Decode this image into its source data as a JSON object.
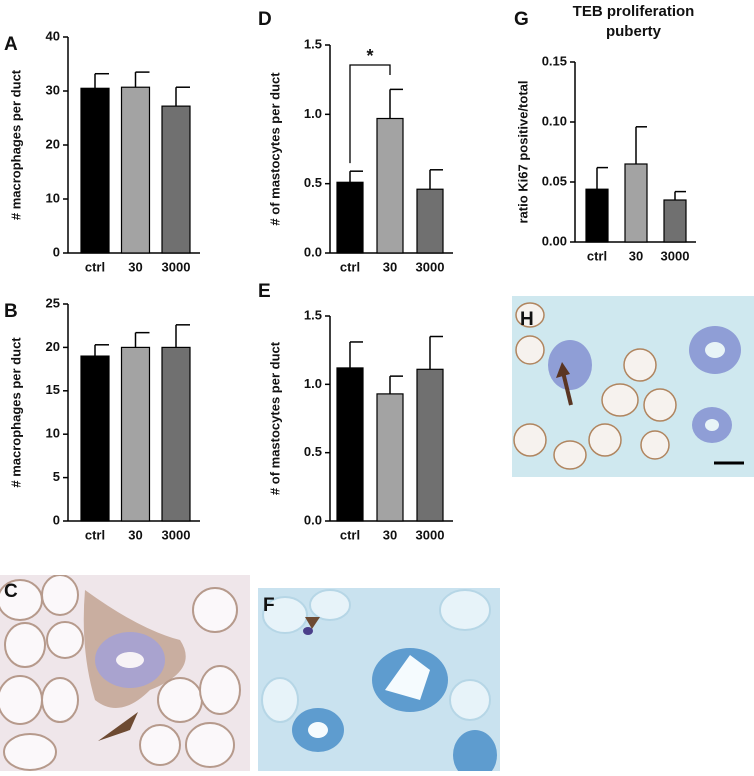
{
  "chart_data": [
    {
      "type": "bar",
      "panel_label": "A",
      "y_label": "# macrophages per duct",
      "categories": [
        "ctrl",
        "30",
        "3000"
      ],
      "values": [
        30.5,
        30.7,
        27.2
      ],
      "errors": [
        2.7,
        2.8,
        3.5
      ],
      "colors": [
        "#000000",
        "#a3a3a3",
        "#707070"
      ],
      "ylim": [
        0,
        40
      ],
      "yticks": [
        0,
        10,
        20,
        30,
        40
      ]
    },
    {
      "type": "bar",
      "panel_label": "B",
      "y_label": "# macrophages per duct",
      "categories": [
        "ctrl",
        "30",
        "3000"
      ],
      "values": [
        19,
        20,
        20
      ],
      "errors": [
        1.3,
        1.7,
        2.6
      ],
      "colors": [
        "#000000",
        "#a3a3a3",
        "#707070"
      ],
      "ylim": [
        0,
        25
      ],
      "yticks": [
        0,
        5,
        10,
        15,
        20,
        25
      ]
    },
    {
      "type": "bar",
      "panel_label": "D",
      "y_label": "# of mastocytes per duct",
      "annotation": "*",
      "categories": [
        "ctrl",
        "30",
        "3000"
      ],
      "values": [
        0.51,
        0.97,
        0.46
      ],
      "errors": [
        0.08,
        0.21,
        0.14
      ],
      "colors": [
        "#000000",
        "#a3a3a3",
        "#707070"
      ],
      "ylim": [
        0,
        1.5
      ],
      "yticks": [
        {
          "value": 0,
          "label": "0.0"
        },
        0.5,
        {
          "value": 1,
          "label": "1.0"
        },
        1.5
      ]
    },
    {
      "type": "bar",
      "panel_label": "E",
      "y_label": "# of mastocytes per duct",
      "categories": [
        "ctrl",
        "30",
        "3000"
      ],
      "values": [
        1.12,
        0.93,
        1.11
      ],
      "errors": [
        0.19,
        0.13,
        0.24
      ],
      "colors": [
        "#000000",
        "#a3a3a3",
        "#707070"
      ],
      "ylim": [
        0,
        1.5
      ],
      "yticks": [
        {
          "value": 0,
          "label": "0.0"
        },
        0.5,
        {
          "value": 1,
          "label": "1.0"
        },
        1.5
      ]
    },
    {
      "type": "bar",
      "panel_label": "G",
      "title": [
        "TEB proliferation",
        "puberty"
      ],
      "y_label": "ratio Ki67 positive/total",
      "categories": [
        "ctrl",
        "30",
        "3000"
      ],
      "values": [
        0.044,
        0.065,
        0.035
      ],
      "errors": [
        0.018,
        0.031,
        0.007
      ],
      "colors": [
        "#000000",
        "#a3a3a3",
        "#707070"
      ],
      "ylim": [
        0,
        0.15
      ],
      "yticks": [
        {
          "value": 0,
          "label": "0.00"
        },
        0.05,
        {
          "value": 0.1,
          "label": "0.10"
        },
        0.15
      ]
    }
  ],
  "image_panels": [
    {
      "label": "C"
    },
    {
      "label": "F"
    },
    {
      "label": "H"
    }
  ]
}
